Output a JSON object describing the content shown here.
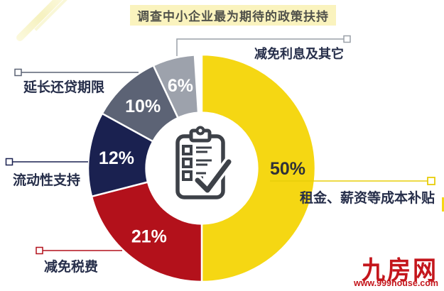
{
  "title": "调查中小企业最为期待的政策扶持",
  "chart_data": {
    "type": "pie",
    "subtype": "donut",
    "title": "调查中小企业最为期待的政策扶持",
    "total": 100,
    "direction": "clockwise",
    "start_angle_deg": 0,
    "donut_hole_ratio": 0.49,
    "center_icon": "checklist-clipboard-icon",
    "legend_position": "callouts",
    "slices": [
      {
        "id": "rent",
        "label": "租金、薪资等成本补贴",
        "value": 50,
        "pct_label": "50%",
        "color": "#F5D713",
        "pct_color": "#2F3138"
      },
      {
        "id": "tax",
        "label": "减免税费",
        "value": 21,
        "pct_label": "21%",
        "color": "#B3111B",
        "pct_color": "#FFFFFF"
      },
      {
        "id": "liquidity",
        "label": "流动性支持",
        "value": 12,
        "pct_label": "12%",
        "color": "#1A2150",
        "pct_color": "#FFFFFF"
      },
      {
        "id": "loan",
        "label": "延长还贷期限",
        "value": 10,
        "pct_label": "10%",
        "color": "#5C6375",
        "pct_color": "#FFFFFF"
      },
      {
        "id": "interest",
        "label": "减免利息及其它",
        "value": 6,
        "pct_label": "6%",
        "color": "#9DA2AC",
        "pct_color": "#FFFFFF"
      }
    ]
  },
  "watermark": {
    "logo": "九房网",
    "url": "www.999house.com",
    "color": "#C4161C"
  }
}
